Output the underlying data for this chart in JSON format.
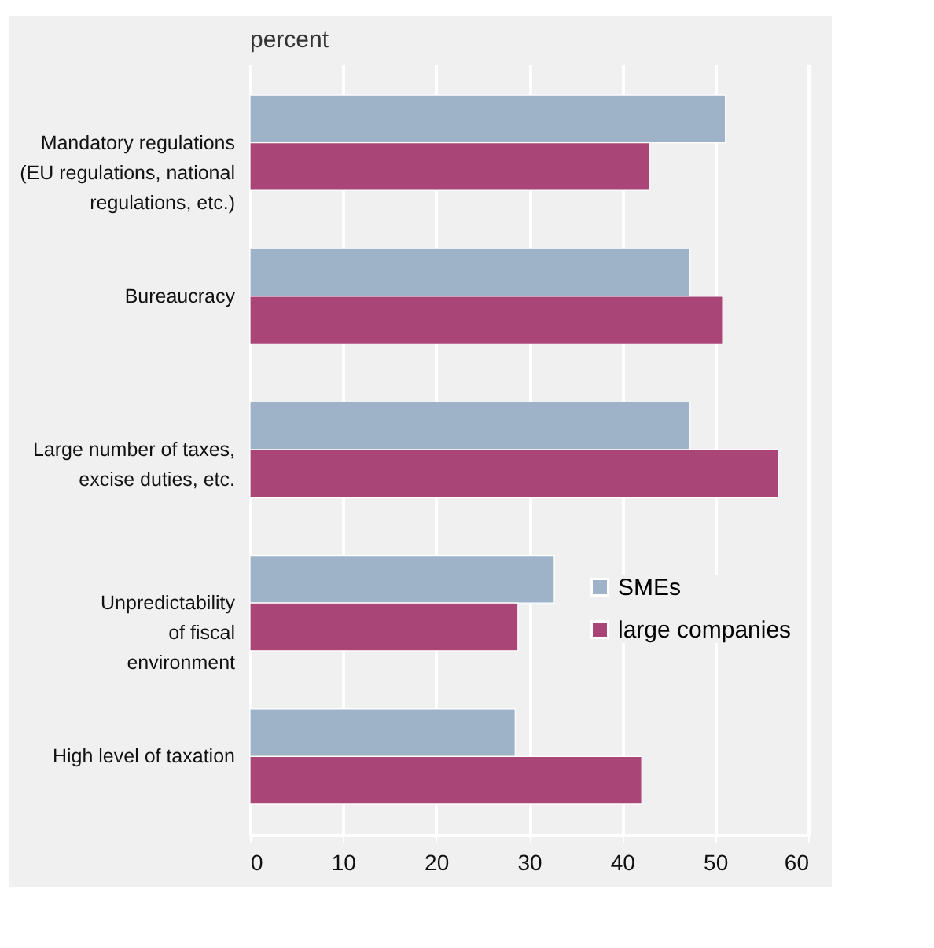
{
  "chart_data": {
    "type": "bar",
    "orientation": "horizontal",
    "xlabel": "percent",
    "categories": [
      "Mandatory regulations\n(EU regulations, national\nregulations, etc.)",
      "Bureaucracy",
      "Large number of taxes,\nexcise duties, etc.",
      "Unpredictability\nof fiscal\nenvironment",
      "High level of taxation"
    ],
    "series": [
      {
        "name": "SMEs",
        "color": "#9fb3c8",
        "values": [
          51.1,
          47.3,
          47.3,
          32.7,
          28.5
        ]
      },
      {
        "name": "large companies",
        "color": "#a94677",
        "values": [
          42.9,
          50.8,
          56.8,
          28.8,
          42.1
        ]
      }
    ],
    "xlim": [
      0,
      60
    ],
    "xticks": [
      0,
      10,
      20,
      30,
      40,
      50,
      60
    ],
    "grid": "x",
    "legend": "bottom right"
  }
}
